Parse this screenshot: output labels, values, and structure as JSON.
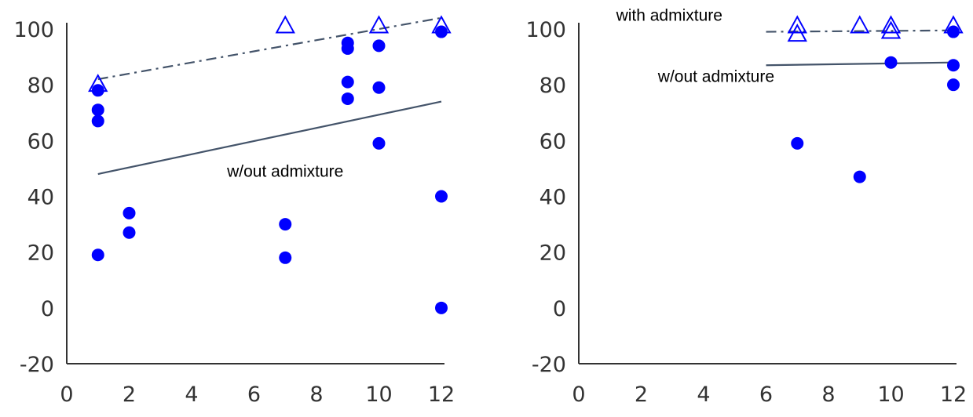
{
  "chart_data": [
    {
      "type": "scatter",
      "xlim": [
        0,
        12
      ],
      "ylim": [
        -20,
        100
      ],
      "xticks": [
        "0",
        "2",
        "4",
        "6",
        "8",
        "10",
        "12"
      ],
      "yticks": [
        "100",
        "80",
        "60",
        "40",
        "20",
        "0",
        "-20"
      ],
      "grid": false,
      "annotations": [
        {
          "text": "w/out admixture",
          "x": 7.0,
          "y": 47
        }
      ],
      "series": [
        {
          "marker": "circle-filled",
          "color": "#0000ff",
          "points": [
            [
              1,
              78
            ],
            [
              1,
              71
            ],
            [
              1,
              67
            ],
            [
              1,
              19
            ],
            [
              2,
              34
            ],
            [
              2,
              27
            ],
            [
              7,
              30
            ],
            [
              7,
              18
            ],
            [
              9,
              95
            ],
            [
              9,
              93
            ],
            [
              9,
              81
            ],
            [
              9,
              75
            ],
            [
              10,
              94
            ],
            [
              10,
              79
            ],
            [
              10,
              59
            ],
            [
              12,
              99
            ],
            [
              12,
              40
            ],
            [
              12,
              0
            ]
          ]
        },
        {
          "marker": "triangle-open",
          "color": "#0000ff",
          "points": [
            [
              1,
              80
            ],
            [
              7,
              101
            ],
            [
              10,
              101
            ],
            [
              12,
              101
            ]
          ]
        }
      ],
      "trendlines": [
        {
          "style": "solid",
          "color": "#44546a",
          "from": [
            1,
            48
          ],
          "to": [
            12,
            74
          ]
        },
        {
          "style": "dash-dot",
          "color": "#44546a",
          "from": [
            1,
            82
          ],
          "to": [
            12,
            104
          ]
        }
      ]
    },
    {
      "type": "scatter",
      "xlim": [
        0,
        12
      ],
      "ylim": [
        -20,
        100
      ],
      "xticks": [
        "0",
        "2",
        "4",
        "6",
        "8",
        "10",
        "12"
      ],
      "yticks": [
        "100",
        "80",
        "60",
        "40",
        "20",
        "0",
        "-20"
      ],
      "grid": false,
      "annotations": [
        {
          "text": "with admixture",
          "x": 2.9,
          "y": 103
        },
        {
          "text": "w/out admixture",
          "x": 4.4,
          "y": 81
        }
      ],
      "series": [
        {
          "marker": "circle-filled",
          "color": "#0000ff",
          "points": [
            [
              7,
              59
            ],
            [
              9,
              47
            ],
            [
              10,
              88
            ],
            [
              12,
              99
            ],
            [
              12,
              87
            ],
            [
              12,
              80
            ]
          ]
        },
        {
          "marker": "triangle-open",
          "color": "#0000ff",
          "points": [
            [
              7,
              101
            ],
            [
              7,
              98
            ],
            [
              9,
              101
            ],
            [
              10,
              101
            ],
            [
              10,
              99
            ],
            [
              12,
              101
            ]
          ]
        }
      ],
      "trendlines": [
        {
          "style": "solid",
          "color": "#44546a",
          "from": [
            6,
            87
          ],
          "to": [
            12,
            88
          ]
        },
        {
          "style": "dash-dot",
          "color": "#44546a",
          "from": [
            6,
            99
          ],
          "to": [
            12,
            99.5
          ]
        }
      ]
    }
  ]
}
